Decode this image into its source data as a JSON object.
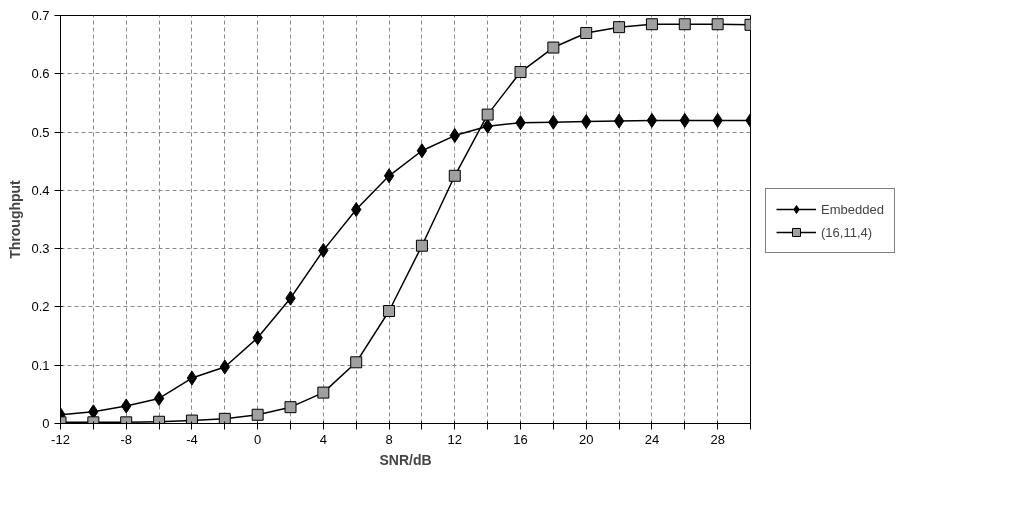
{
  "chart_data": {
    "type": "line",
    "xlabel": "SNR/dB",
    "ylabel": "Throughput",
    "x": [
      -12,
      -10,
      -8,
      -6,
      -4,
      -2,
      0,
      2,
      4,
      6,
      8,
      10,
      12,
      14,
      16,
      18,
      20,
      22,
      24,
      26,
      28,
      30
    ],
    "series": [
      {
        "name": "Embedded",
        "color": "#000000",
        "marker": "diamond",
        "values": [
          0.015,
          0.02,
          0.03,
          0.043,
          0.078,
          0.097,
          0.147,
          0.215,
          0.297,
          0.367,
          0.425,
          0.468,
          0.494,
          0.51,
          0.516,
          0.517,
          0.518,
          0.519,
          0.52,
          0.52,
          0.52,
          0.52
        ]
      },
      {
        "name": "(16,11,4)",
        "color": "#a0a0a0",
        "marker": "square",
        "values": [
          0.002,
          0.002,
          0.002,
          0.003,
          0.005,
          0.008,
          0.015,
          0.028,
          0.053,
          0.105,
          0.193,
          0.305,
          0.425,
          0.53,
          0.603,
          0.645,
          0.67,
          0.68,
          0.685,
          0.685,
          0.685,
          0.684
        ]
      }
    ],
    "xlim": [
      -12,
      30
    ],
    "ylim": [
      0,
      0.7
    ],
    "xticks": [
      -12,
      {
        "value": -10,
        "label": null
      },
      -8,
      {
        "value": -6,
        "label": null
      },
      -4,
      {
        "value": -2,
        "label": null
      },
      0,
      {
        "value": 2,
        "label": null
      },
      4,
      {
        "value": 6,
        "label": null
      },
      8,
      {
        "value": 10,
        "label": null
      },
      12,
      {
        "value": 14,
        "label": null
      },
      16,
      {
        "value": 18,
        "label": null
      },
      20,
      {
        "value": 22,
        "label": null
      },
      24,
      {
        "value": 26,
        "label": null
      },
      28,
      {
        "value": 30,
        "label": null
      }
    ],
    "yticks": [
      0,
      0.1,
      0.2,
      0.3,
      0.4,
      0.5,
      0.6,
      0.7
    ],
    "grid": true,
    "legend": "right",
    "line_style": "solid"
  }
}
